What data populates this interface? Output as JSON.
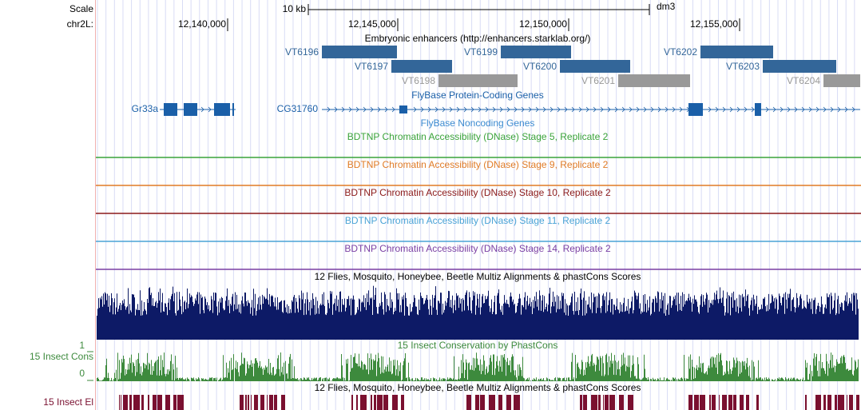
{
  "ruler": {
    "scale_label": "Scale",
    "scale_size": "10 kb",
    "assembly": "dm3",
    "chrom": "chr2L:",
    "positions": [
      "12,140,000",
      "12,145,000",
      "12,150,000",
      "12,155,000"
    ]
  },
  "enhancers": {
    "title": "Embryonic enhancers (http://enhancers.starklab.org/)",
    "items": [
      {
        "name": "VT6196",
        "color": "#336699"
      },
      {
        "name": "VT6197",
        "color": "#336699"
      },
      {
        "name": "VT6198",
        "color": "#999999"
      },
      {
        "name": "VT6199",
        "color": "#336699"
      },
      {
        "name": "VT6200",
        "color": "#336699"
      },
      {
        "name": "VT6201",
        "color": "#999999"
      },
      {
        "name": "VT6202",
        "color": "#336699"
      },
      {
        "name": "VT6203",
        "color": "#336699"
      },
      {
        "name": "VT6204",
        "color": "#999999"
      }
    ]
  },
  "genes": {
    "title": "FlyBase Protein-Coding Genes",
    "color": "#1a5fa8",
    "items": [
      "Gr33a",
      "CG31760"
    ]
  },
  "noncoding": {
    "title": "FlyBase Noncoding Genes",
    "color": "#3b8ad0"
  },
  "dnase": [
    {
      "title": "BDTNP Chromatin Accessibility (DNase) Stage 5, Replicate 2",
      "color": "#3aa33a"
    },
    {
      "title": "BDTNP Chromatin Accessibility (DNase) Stage 9, Replicate 2",
      "color": "#e07b26"
    },
    {
      "title": "BDTNP Chromatin Accessibility (DNase) Stage 10, Replicate 2",
      "color": "#8b1a1a"
    },
    {
      "title": "BDTNP Chromatin Accessibility (DNase) Stage 11, Replicate 2",
      "color": "#4aa3d6"
    },
    {
      "title": "BDTNP Chromatin Accessibility (DNase) Stage 14, Replicate 2",
      "color": "#7a3fa3"
    }
  ],
  "multiz": {
    "title": "12 Flies, Mosquito, Honeybee, Beetle Multiz Alignments & phastCons Scores",
    "color": "#0d1a66"
  },
  "phastcons": {
    "title": "15 Insect Conservation by PhastCons",
    "label": "15 Insect Cons",
    "max": 1,
    "min": 0,
    "color": "#3d8a3d"
  },
  "elements": {
    "title": "12 Flies, Mosquito, Honeybee, Beetle Multiz Alignments & phastCons Scores",
    "label": "15 Insect El",
    "color": "#7a1030"
  }
}
